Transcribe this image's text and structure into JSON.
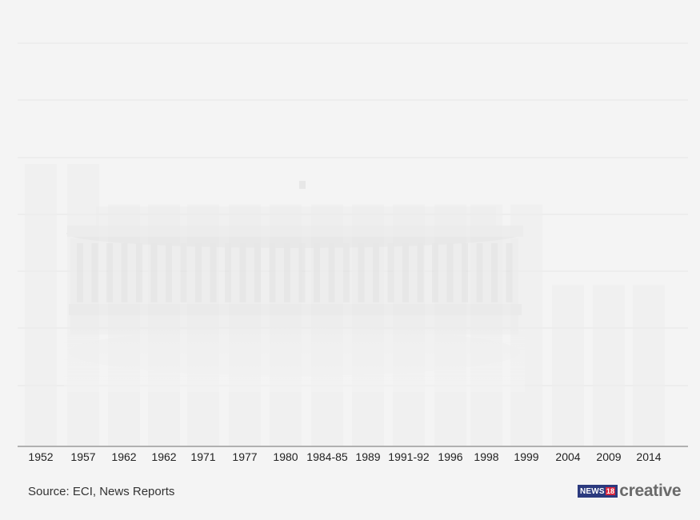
{
  "chart_data": {
    "type": "bar",
    "title": "",
    "xlabel": "",
    "ylabel": "",
    "categories": [
      "1952",
      "1957",
      "1962",
      "1962",
      "1971",
      "1977",
      "1980",
      "1984-85",
      "1989",
      "1991-92",
      "1996",
      "1998",
      "1999",
      "2004",
      "2009",
      "2014"
    ],
    "values": [
      7,
      7,
      6,
      6,
      6,
      6,
      6,
      6,
      6,
      6,
      6,
      6,
      6,
      4,
      4,
      4
    ],
    "ylim": [
      0,
      10
    ],
    "grid": true,
    "colors": {
      "bar": "#ececec",
      "grid": "#e6e6e6",
      "axis": "#9a9a9a",
      "text": "#222222",
      "building": "#e9e9e9"
    }
  },
  "source": "Source: ECI, News Reports",
  "logo": {
    "badge": "NEWS",
    "badge_number": "18",
    "word": "creative"
  }
}
